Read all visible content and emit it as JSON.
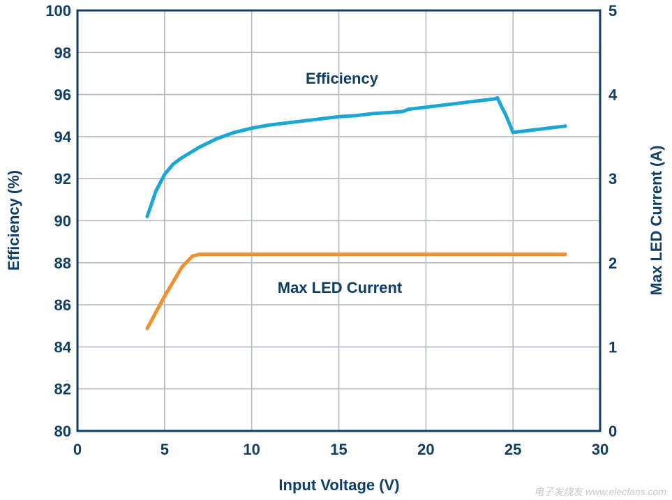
{
  "chart_data": {
    "type": "line",
    "xlabel": "Input Voltage (V)",
    "ylabel_left": "Efficiency (%)",
    "ylabel_right": "Max LED Current (A)",
    "xlim": [
      0,
      30
    ],
    "ylim_left": [
      80,
      100
    ],
    "ylim_right": [
      0,
      5
    ],
    "grid": true,
    "x_ticks": [
      "0",
      "5",
      "10",
      "15",
      "20",
      "25",
      "30"
    ],
    "y_left_ticks": [
      "80",
      "82",
      "84",
      "86",
      "88",
      "90",
      "92",
      "94",
      "96",
      "98",
      "100"
    ],
    "y_right_ticks": [
      "0",
      "1",
      "2",
      "3",
      "4",
      "5"
    ],
    "series": [
      {
        "name": "Efficiency",
        "axis": "left",
        "color": "#1ba6d6",
        "x": [
          4,
          4.5,
          5,
          5.5,
          6,
          7,
          8,
          9,
          10,
          11,
          12,
          13,
          14,
          15,
          16,
          17,
          18,
          18.7,
          19,
          20,
          21,
          22,
          23,
          24,
          24.1,
          24.3,
          24.6,
          24.8,
          25,
          26,
          27,
          28
        ],
        "y": [
          90.2,
          91.4,
          92.2,
          92.7,
          93.0,
          93.5,
          93.9,
          94.2,
          94.4,
          94.55,
          94.65,
          94.75,
          94.85,
          94.95,
          95.0,
          95.1,
          95.15,
          95.2,
          95.3,
          95.4,
          95.5,
          95.6,
          95.7,
          95.8,
          95.85,
          95.5,
          95.0,
          94.6,
          94.2,
          94.3,
          94.4,
          94.5
        ]
      },
      {
        "name": "Max LED Current",
        "axis": "right",
        "color": "#f0902e",
        "x": [
          4,
          5,
          6,
          6.6,
          7,
          8,
          10,
          15,
          20,
          25,
          28
        ],
        "y": [
          1.22,
          1.6,
          1.95,
          2.08,
          2.1,
          2.1,
          2.1,
          2.1,
          2.1,
          2.1,
          2.1
        ]
      }
    ],
    "annotations": [
      "Efficiency",
      "Max LED Current"
    ]
  },
  "watermark": "电子发烧友 www.elecfans.com"
}
